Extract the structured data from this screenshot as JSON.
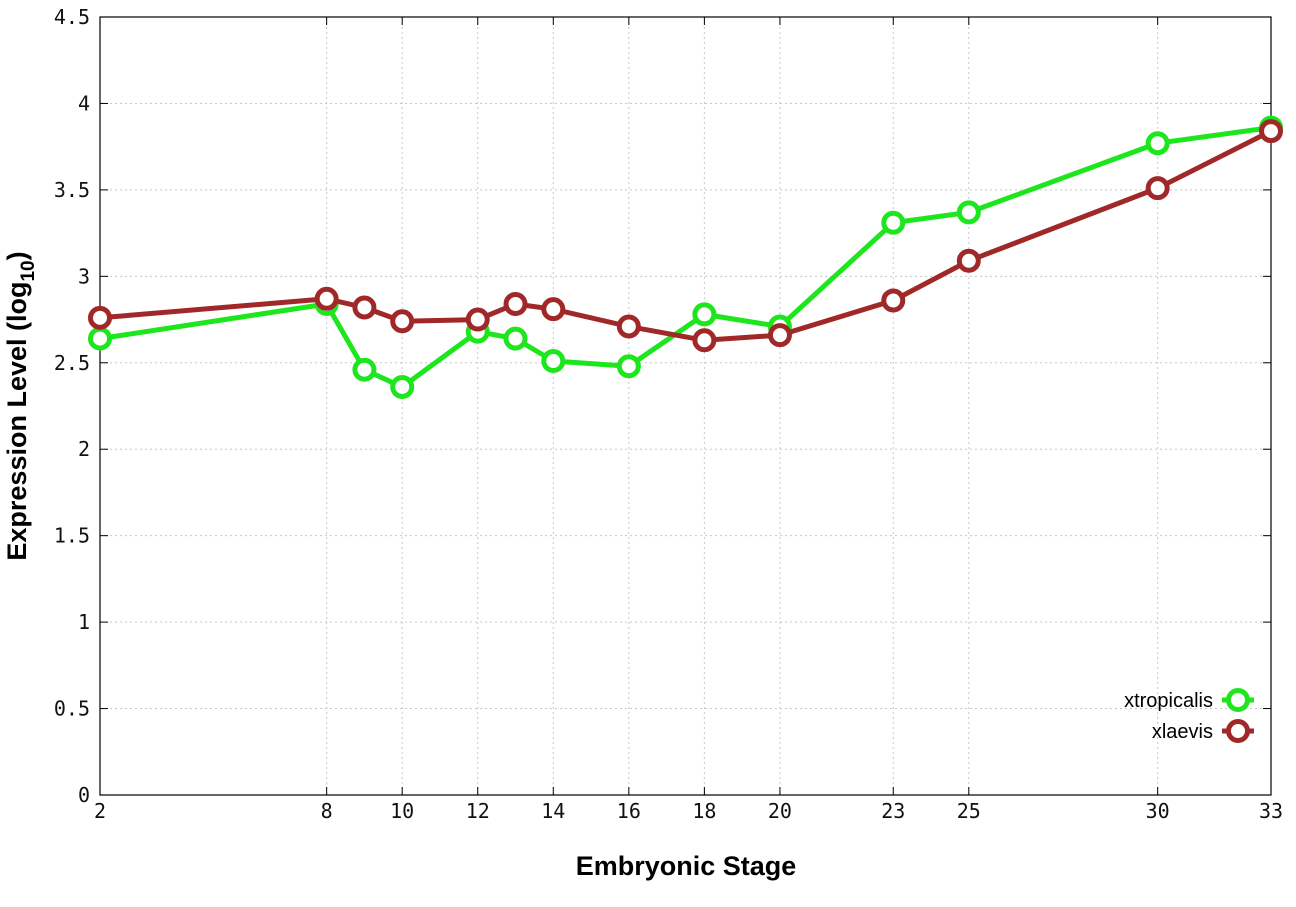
{
  "chart_data": {
    "type": "line",
    "xlabel": "Embryonic Stage",
    "ylabel": "Expression Level (log",
    "ylabel_subscript": "10",
    "ylabel_suffix": ")",
    "x_ticks": [
      2,
      8,
      10,
      12,
      14,
      16,
      18,
      20,
      23,
      25,
      30,
      33
    ],
    "y_ticks": [
      0,
      0.5,
      1,
      1.5,
      2,
      2.5,
      3,
      3.5,
      4,
      4.5
    ],
    "y_tick_labels": [
      "0",
      "0.5",
      "1",
      "1.5",
      "2",
      "2.5",
      "3",
      "3.5",
      "4",
      "4.5"
    ],
    "xlim": [
      2,
      33
    ],
    "ylim": [
      0,
      4.5
    ],
    "grid": true,
    "legend_position": "bottom-right",
    "series": [
      {
        "name": "xtropicalis",
        "color": "#1ee61e",
        "x": [
          2,
          8,
          9,
          10,
          12,
          13,
          14,
          16,
          18,
          20,
          23,
          25,
          30,
          33
        ],
        "y": [
          2.64,
          2.84,
          2.46,
          2.36,
          2.68,
          2.64,
          2.51,
          2.48,
          2.78,
          2.71,
          3.31,
          3.37,
          3.77,
          3.86
        ]
      },
      {
        "name": "xlaevis",
        "color": "#a02828",
        "x": [
          2,
          8,
          9,
          10,
          12,
          13,
          14,
          16,
          18,
          20,
          23,
          25,
          30,
          33
        ],
        "y": [
          2.76,
          2.87,
          2.82,
          2.74,
          2.75,
          2.84,
          2.81,
          2.71,
          2.63,
          2.66,
          2.86,
          3.09,
          3.51,
          3.84
        ]
      }
    ]
  }
}
